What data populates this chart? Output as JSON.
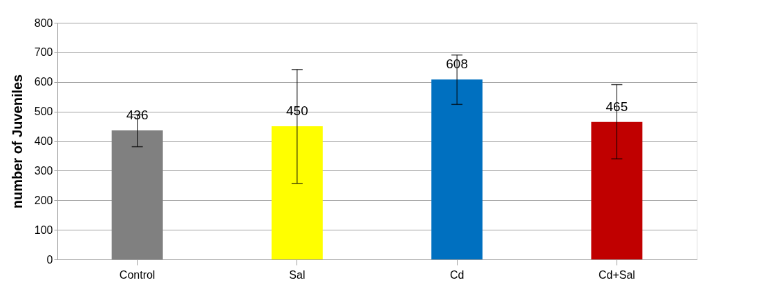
{
  "chart_data": {
    "type": "bar",
    "ylabel": "number of Juveniles",
    "categories": [
      "Control",
      "Sal",
      "Cd",
      "Cd+Sal"
    ],
    "values": [
      436,
      450,
      608,
      465
    ],
    "colors": [
      "#808080",
      "#ffff00",
      "#0070c0",
      "#c00000"
    ],
    "errors": [
      [
        381,
        489
      ],
      [
        257,
        642
      ],
      [
        524,
        691
      ],
      [
        340,
        591
      ]
    ],
    "data_labels": true,
    "ylim": [
      0,
      800
    ],
    "yticks": [
      0,
      100,
      200,
      300,
      400,
      500,
      600,
      700,
      800
    ],
    "grid": "y"
  }
}
